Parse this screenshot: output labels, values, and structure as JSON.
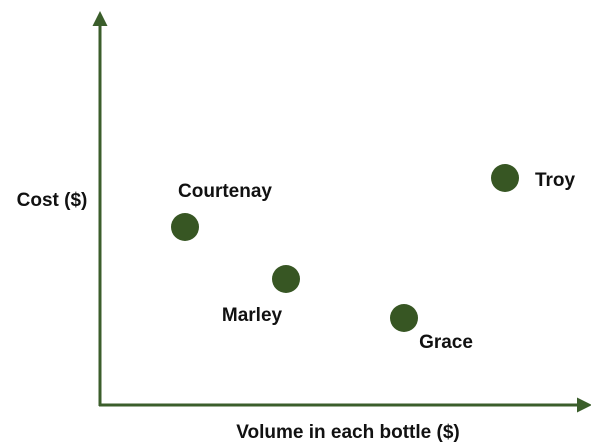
{
  "axes": {
    "y_label": "Cost ($)",
    "x_label": "Volume in each bottle ($)"
  },
  "nodes": [
    {
      "label": "Courtenay"
    },
    {
      "label": "Marley"
    },
    {
      "label": "Grace"
    },
    {
      "label": "Troy"
    }
  ]
}
